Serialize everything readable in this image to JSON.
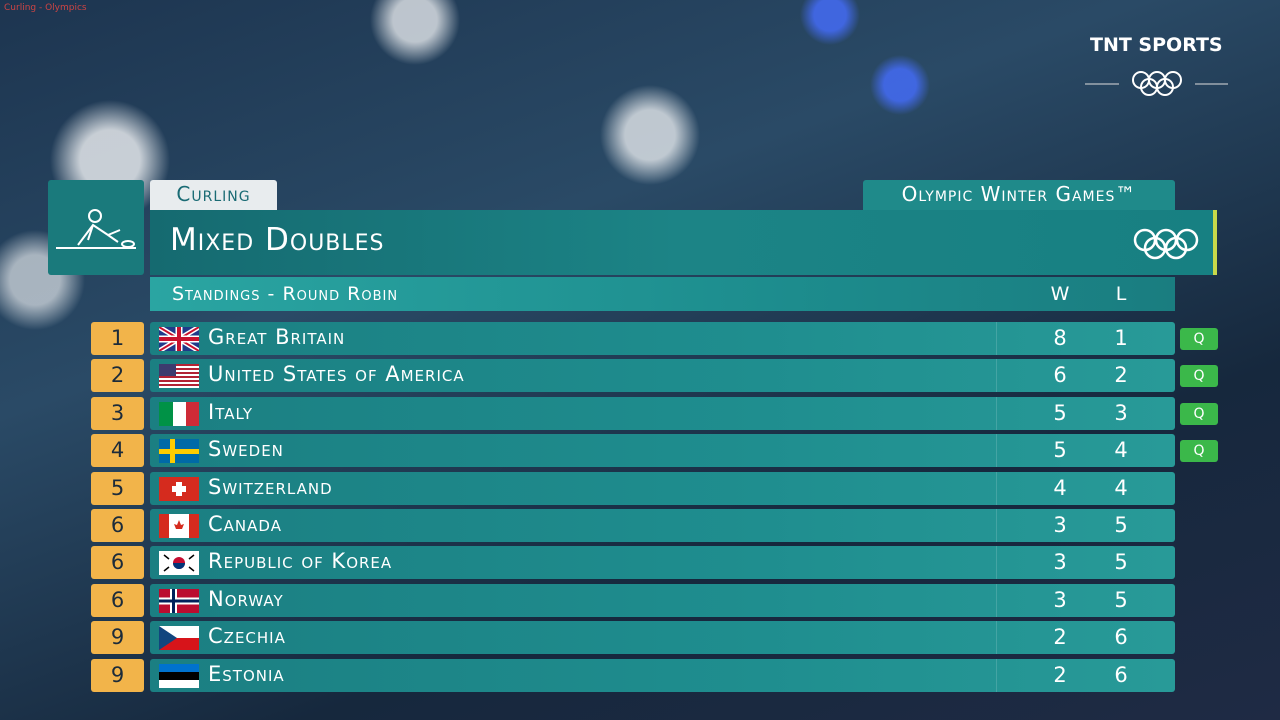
{
  "source_label": "Curling - Olympics",
  "broadcaster": "TNT SPORTS",
  "header": {
    "sport": "Curling",
    "event_brand": "Olympic Winter Games™",
    "title": "Mixed Doubles",
    "subtitle": "Standings - Round Robin"
  },
  "table": {
    "columns": [
      "W",
      "L"
    ],
    "rows": [
      {
        "rank": 1,
        "country": "Great Britain",
        "w": 8,
        "l": 1,
        "status": "Q"
      },
      {
        "rank": 2,
        "country": "United States of America",
        "w": 6,
        "l": 2,
        "status": "Q"
      },
      {
        "rank": 3,
        "country": "Italy",
        "w": 5,
        "l": 3,
        "status": "Q"
      },
      {
        "rank": 4,
        "country": "Sweden",
        "w": 5,
        "l": 4,
        "status": "Q"
      },
      {
        "rank": 5,
        "country": "Switzerland",
        "w": 4,
        "l": 4
      },
      {
        "rank": 6,
        "country": "Canada",
        "w": 3,
        "l": 5
      },
      {
        "rank": 6,
        "country": "Republic of Korea",
        "w": 3,
        "l": 5
      },
      {
        "rank": 6,
        "country": "Norway",
        "w": 3,
        "l": 5
      },
      {
        "rank": 9,
        "country": "Czechia",
        "w": 2,
        "l": 6
      },
      {
        "rank": 9,
        "country": "Estonia",
        "w": 2,
        "l": 6
      }
    ]
  }
}
